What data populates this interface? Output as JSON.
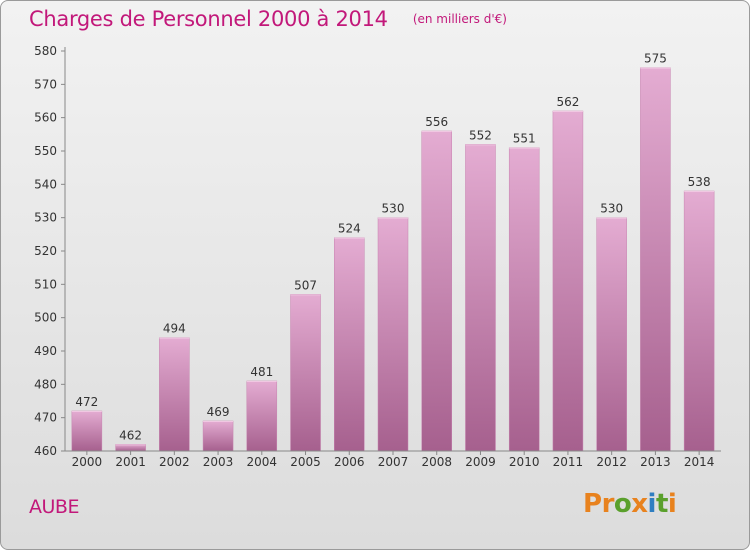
{
  "chart_data": {
    "type": "bar",
    "title": "Charges de Personnel 2000 à 2014",
    "subtitle": "(en milliers d'€)",
    "categories": [
      "2000",
      "2001",
      "2002",
      "2003",
      "2004",
      "2005",
      "2006",
      "2007",
      "2008",
      "2009",
      "2010",
      "2011",
      "2012",
      "2013",
      "2014"
    ],
    "values": [
      472,
      462,
      494,
      469,
      481,
      507,
      524,
      530,
      556,
      552,
      551,
      562,
      530,
      575,
      538
    ],
    "ylim": [
      460,
      580
    ],
    "yticks": [
      460,
      470,
      480,
      490,
      500,
      510,
      520,
      530,
      540,
      550,
      560,
      570,
      580
    ],
    "xlabel": "",
    "ylabel": "",
    "grid": false,
    "bar_color": "#d98cbb"
  },
  "region": "AUBE",
  "brand": {
    "text": "Proxiti",
    "letter_colors": [
      "#e8821e",
      "#e8821e",
      "#5aa02c",
      "#e8821e",
      "#2f7ec1",
      "#5aa02c",
      "#e8821e"
    ]
  },
  "colors": {
    "accent": "#c2187a",
    "bar_light": "#e4acd2",
    "bar_dark": "#a6608e"
  }
}
